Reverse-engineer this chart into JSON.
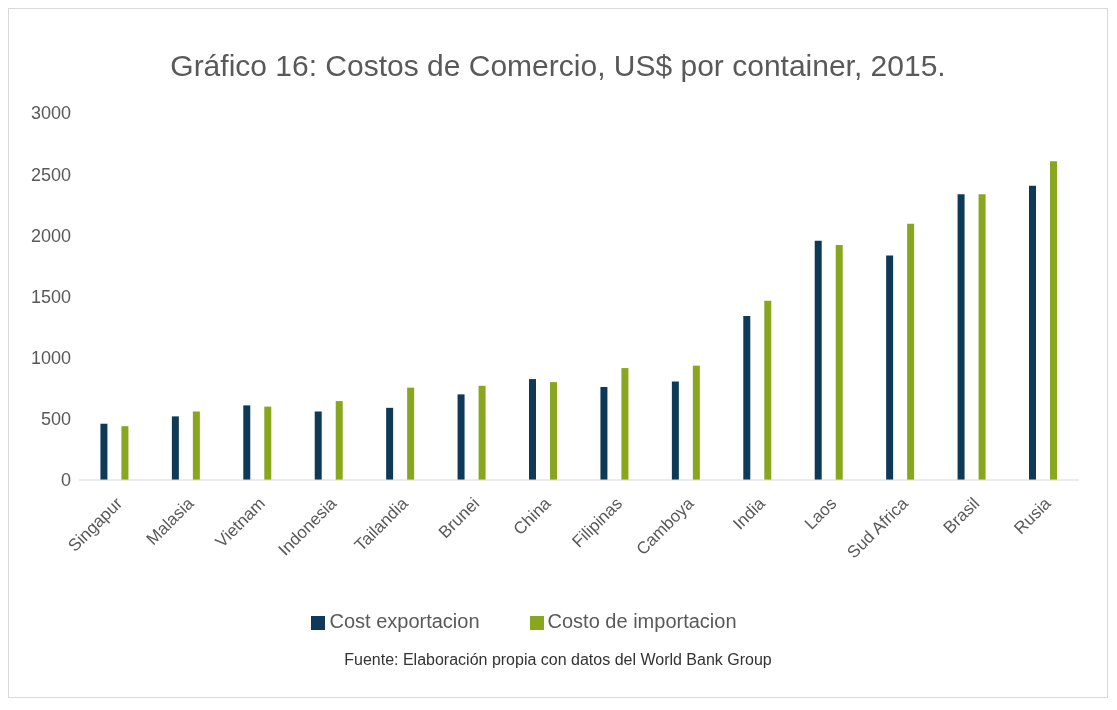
{
  "chart_data": {
    "type": "bar",
    "title": "Gráfico 16: Costos de Comercio, US$ por container, 2015.",
    "categories": [
      "Singapur",
      "Malasia",
      "Vietnam",
      "Indonesia",
      "Tailandia",
      "Brunei",
      "China",
      "Filipinas",
      "Camboya",
      "India",
      "Laos",
      "Sud Africa",
      "Brasil",
      "Rusia"
    ],
    "series": [
      {
        "name": "Cost exportacion",
        "color": "#0e3a58",
        "values": [
          460,
          520,
          610,
          560,
          590,
          700,
          825,
          760,
          805,
          1340,
          1955,
          1835,
          2335,
          2405
        ]
      },
      {
        "name": "Costo de importacion",
        "color": "#88a61e",
        "values": [
          440,
          560,
          600,
          645,
          755,
          770,
          800,
          915,
          935,
          1465,
          1920,
          2095,
          2335,
          2605
        ]
      }
    ],
    "ylim": [
      0,
      3000
    ],
    "yticks": [
      0,
      500,
      1000,
      1500,
      2000,
      2500,
      3000
    ],
    "grid": false,
    "legend": "bottom",
    "annotations": [
      "Fuente: Elaboración propia con datos del World Bank Group"
    ]
  }
}
